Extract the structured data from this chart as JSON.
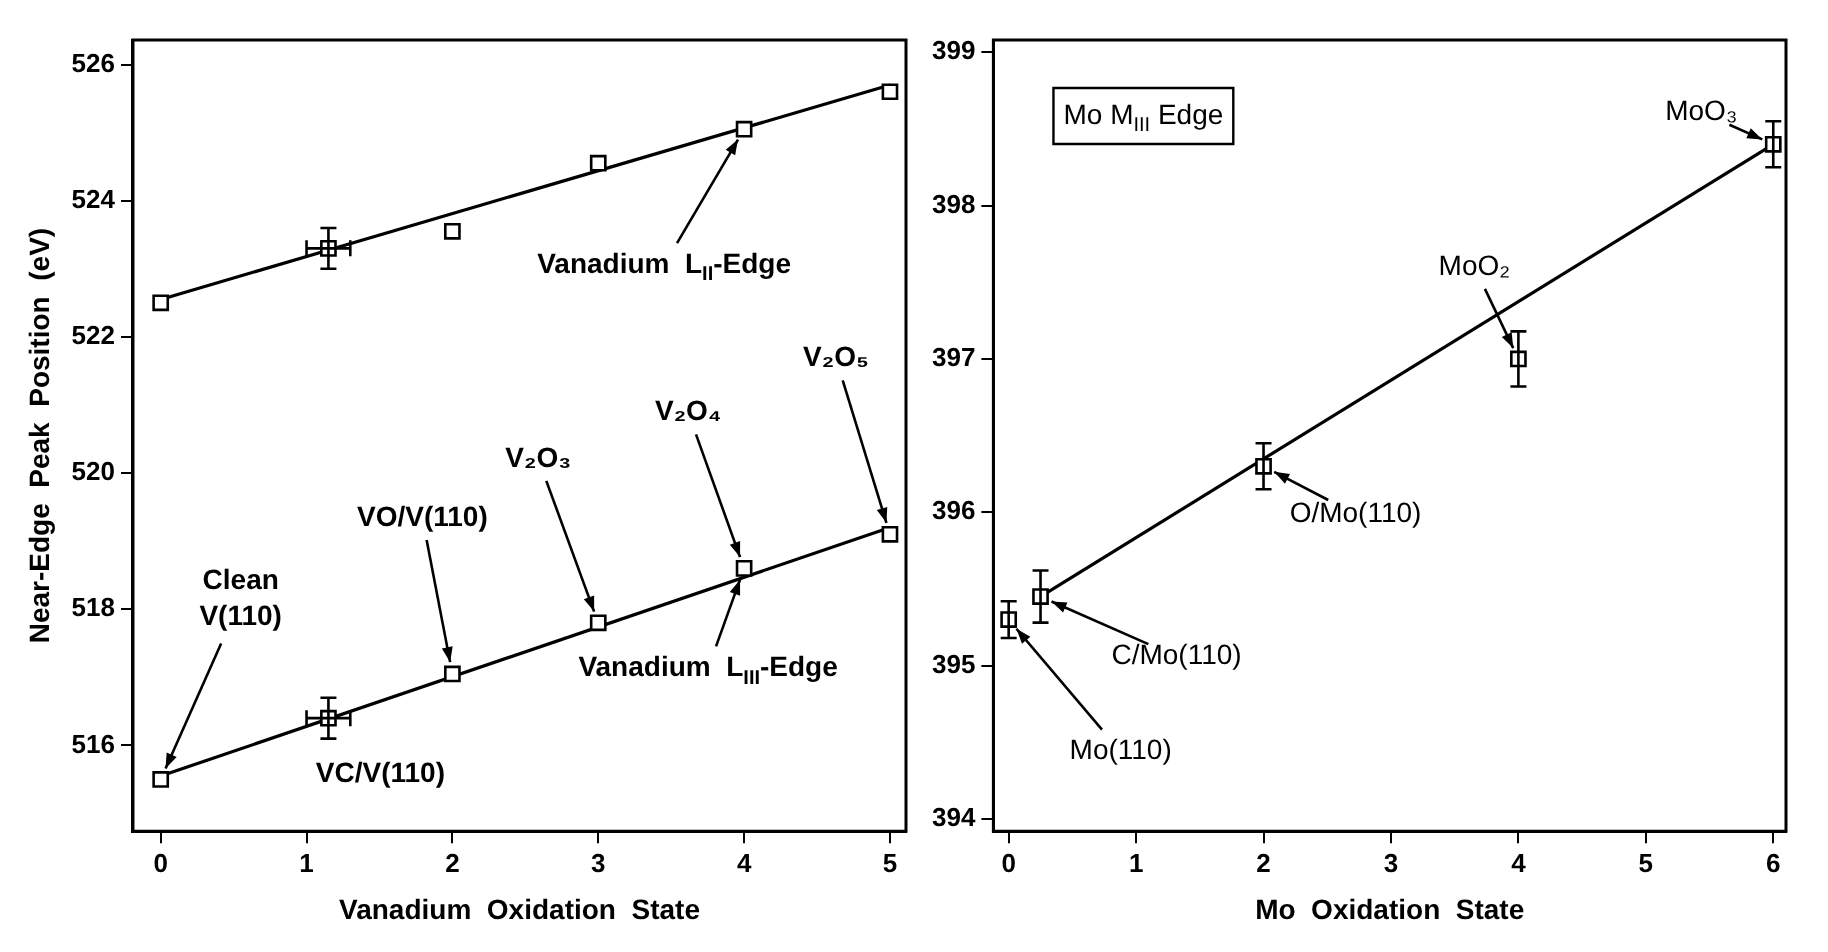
{
  "chart_data": [
    {
      "type": "scatter",
      "xlabel": "Vanadium  Oxidation  State",
      "ylabel": "Near-Edge  Peak  Position  (eV)",
      "marker": "square",
      "grid": false,
      "xlim": [
        -0.19,
        5.11
      ],
      "xticks": [
        0,
        1,
        2,
        3,
        4,
        5
      ],
      "ylim": [
        514.74,
        526.36
      ],
      "yticks": [
        516,
        518,
        520,
        522,
        524,
        526
      ],
      "series": [
        {
          "type": "scatter",
          "color": "#000000",
          "x": [
            0,
            1.15,
            2,
            3,
            4,
            5
          ],
          "values": [
            522.5,
            523.3,
            523.55,
            524.55,
            525.05,
            525.6
          ],
          "errors": [
            null,
            0.3,
            null,
            null,
            null,
            null
          ],
          "xerrors": [
            null,
            0.15,
            null,
            null,
            null,
            null
          ]
        },
        {
          "type": "line",
          "color": "#000000",
          "marker": "none",
          "x": [
            0,
            5
          ],
          "values": [
            522.55,
            525.7
          ]
        },
        {
          "type": "scatter",
          "color": "#000000",
          "x": [
            0,
            1.15,
            2,
            3,
            4,
            5
          ],
          "values": [
            515.5,
            516.4,
            517.05,
            517.8,
            518.6,
            519.1
          ],
          "errors": [
            null,
            0.3,
            null,
            null,
            null,
            null
          ],
          "xerrors": [
            null,
            0.15,
            null,
            null,
            null,
            null
          ]
        },
        {
          "type": "line",
          "color": "#000000",
          "marker": "none",
          "x": [
            0,
            5
          ],
          "values": [
            515.55,
            519.2
          ]
        }
      ],
      "annotations": [
        {
          "text": "Clean V(110)",
          "x": 0,
          "y": 515.5
        },
        {
          "text": "VC/V(110)",
          "x": 1.15,
          "y": 516.4
        },
        {
          "text": "VO/V(110)",
          "x": 2,
          "y": 517.05
        },
        {
          "text": "V₂O₃",
          "x": 3,
          "y": 517.8
        },
        {
          "text": "V₂O₄",
          "x": 4,
          "y": 518.6
        },
        {
          "text": "V₂O₅",
          "x": 5,
          "y": 519.1
        },
        {
          "text": "Vanadium  L$_{III}$-Edge",
          "x": 4,
          "y": 518.6
        },
        {
          "text": "Vanadium  L$_{II}$-Edge",
          "x": 4,
          "y": 525.05
        }
      ]
    },
    {
      "type": "scatter",
      "xlabel": "Mo  Oxidation  State",
      "marker": "square",
      "grid": false,
      "xlim": [
        -0.12,
        6.1
      ],
      "xticks": [
        0,
        1,
        2,
        3,
        4,
        5,
        6
      ],
      "ylim": [
        393.92,
        399.08
      ],
      "yticks": [
        394,
        395,
        396,
        397,
        398,
        399
      ],
      "series": [
        {
          "type": "scatter",
          "color": "#000000",
          "x": [
            0,
            0.25,
            2,
            4,
            6
          ],
          "values": [
            395.3,
            395.45,
            396.3,
            397.0,
            398.4
          ],
          "errors": [
            0.12,
            0.17,
            0.15,
            0.18,
            0.15
          ]
        },
        {
          "type": "line",
          "color": "#000000",
          "marker": "none",
          "x": [
            0.25,
            6
          ],
          "values": [
            395.45,
            398.4
          ]
        }
      ],
      "annotations": [
        "Mo M$_{III}$ Edge",
        {
          "text": "MoO₃",
          "x": 6,
          "y": 398.4
        },
        {
          "text": "MoO₂",
          "x": 4,
          "y": 397.0
        },
        {
          "text": "O/Mo(110)",
          "x": 2,
          "y": 396.3
        },
        {
          "text": "C/Mo(110)",
          "x": 0.25,
          "y": 395.45
        },
        {
          "text": "Mo(110)",
          "x": 0,
          "y": 395.3
        }
      ]
    }
  ]
}
